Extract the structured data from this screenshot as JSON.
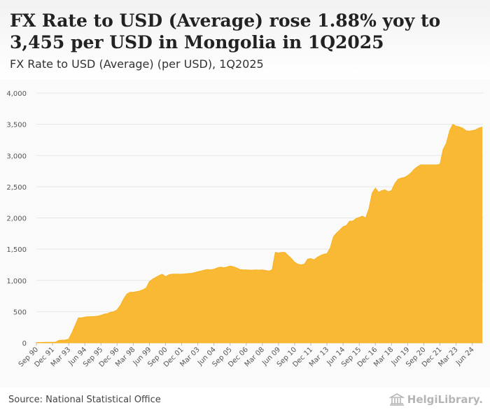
{
  "header": {
    "title": "FX Rate to USD (Average) rose 1.88% yoy to 3,455 per USD in Mongolia in 1Q2025",
    "subtitle": "FX Rate to USD (Average) (per USD), 1Q2025"
  },
  "footer": {
    "source": "Source: National Statistical Office",
    "logo_text": "HelgiLibrary."
  },
  "colors": {
    "area": "#f9b934",
    "area_edge": "#f7ad12",
    "grid": "#e6e6e6",
    "axis_text": "#555555"
  },
  "chart_data": {
    "type": "area",
    "title": "FX Rate to USD (Average) (per USD), 1Q2025",
    "xlabel": "",
    "ylabel": "",
    "ylim": [
      0,
      4000
    ],
    "yticks": [
      0,
      500,
      1000,
      1500,
      2000,
      2500,
      3000,
      3500,
      4000
    ],
    "ytick_labels": [
      "0",
      "500",
      "1,000",
      "1,500",
      "2,000",
      "2,500",
      "3,000",
      "3,500",
      "4,000"
    ],
    "xlim_months": [
      0,
      415
    ],
    "xtick_labels": [
      "Sep 90",
      "Dec 91",
      "Mar 93",
      "Jun 94",
      "Sep 95",
      "Dec 96",
      "Mar 98",
      "Jun 99",
      "Sep 00",
      "Dec 01",
      "Mar 03",
      "Jun 04",
      "Sep 05",
      "Dec 06",
      "Mar 08",
      "Jun 09",
      "Sep 10",
      "Dec 11",
      "Mar 13",
      "Jun 14",
      "Sep 15",
      "Dec 16",
      "Mar 18",
      "Jun 19",
      "Sep 20",
      "Dec 21",
      "Mar 23",
      "Jun 24"
    ],
    "xtick_months": [
      0,
      15,
      30,
      45,
      60,
      75,
      90,
      105,
      120,
      135,
      150,
      165,
      180,
      195,
      210,
      225,
      240,
      255,
      270,
      285,
      300,
      315,
      330,
      345,
      360,
      375,
      390,
      405
    ],
    "series": [
      {
        "name": "FX Rate to USD (Average)",
        "x_months": [
          0,
          3,
          6,
          9,
          12,
          15,
          18,
          21,
          24,
          27,
          30,
          33,
          36,
          39,
          42,
          45,
          48,
          51,
          54,
          57,
          60,
          63,
          66,
          69,
          72,
          75,
          78,
          81,
          84,
          87,
          90,
          93,
          96,
          99,
          102,
          105,
          108,
          111,
          114,
          117,
          120,
          123,
          126,
          129,
          132,
          135,
          138,
          141,
          144,
          147,
          150,
          153,
          156,
          159,
          162,
          165,
          168,
          171,
          174,
          177,
          180,
          183,
          186,
          189,
          192,
          195,
          198,
          201,
          204,
          207,
          210,
          213,
          216,
          219,
          222,
          225,
          228,
          231,
          234,
          237,
          240,
          243,
          246,
          249,
          252,
          255,
          258,
          261,
          264,
          267,
          270,
          273,
          276,
          279,
          282,
          285,
          288,
          291,
          294,
          297,
          300,
          303,
          306,
          309,
          312,
          315,
          318,
          321,
          324,
          327,
          330,
          333,
          336,
          339,
          342,
          345,
          348,
          351,
          354,
          357,
          360,
          363,
          366,
          369,
          372,
          375,
          378,
          381,
          384,
          387,
          390,
          393,
          396,
          399,
          402,
          405,
          408,
          411,
          414
        ],
        "values": [
          7,
          7,
          8,
          9,
          10,
          10,
          12,
          40,
          45,
          46,
          60,
          160,
          280,
          400,
          400,
          413,
          420,
          418,
          422,
          428,
          440,
          460,
          470,
          490,
          500,
          530,
          600,
          700,
          780,
          810,
          810,
          820,
          830,
          850,
          880,
          980,
          1020,
          1050,
          1080,
          1100,
          1060,
          1090,
          1100,
          1100,
          1100,
          1100,
          1105,
          1110,
          1115,
          1125,
          1140,
          1150,
          1165,
          1175,
          1170,
          1180,
          1200,
          1215,
          1205,
          1215,
          1230,
          1220,
          1200,
          1175,
          1170,
          1170,
          1165,
          1165,
          1170,
          1165,
          1170,
          1160,
          1150,
          1170,
          1450,
          1440,
          1450,
          1450,
          1400,
          1350,
          1290,
          1260,
          1250,
          1260,
          1340,
          1350,
          1330,
          1370,
          1400,
          1420,
          1430,
          1520,
          1700,
          1760,
          1810,
          1860,
          1880,
          1950,
          1950,
          1990,
          2010,
          2030,
          2000,
          2150,
          2400,
          2480,
          2410,
          2440,
          2450,
          2420,
          2440,
          2550,
          2620,
          2640,
          2650,
          2680,
          2720,
          2780,
          2820,
          2850,
          2850,
          2850,
          2850,
          2850,
          2850,
          2860,
          3100,
          3200,
          3400,
          3500,
          3470,
          3460,
          3440,
          3400,
          3390,
          3400,
          3410,
          3440,
          3455
        ]
      }
    ]
  }
}
